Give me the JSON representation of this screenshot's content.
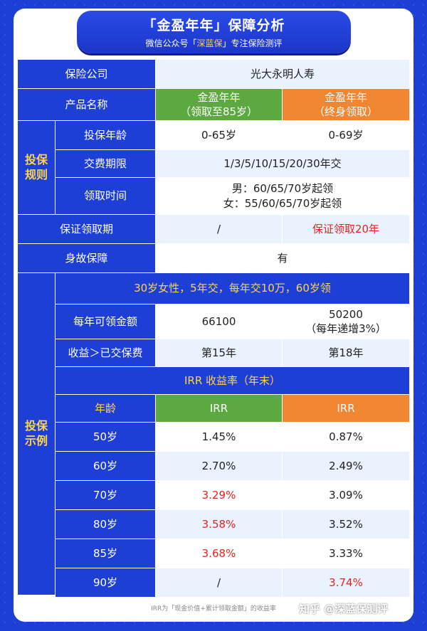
{
  "header": {
    "title": "「金盈年年」保障分析",
    "subtitle_pre": "微信公众号「",
    "subtitle_brand": "深蓝保",
    "subtitle_post": "」专注保险测评"
  },
  "rows": {
    "company_label": "保险公司",
    "company_value": "光大永明人寿",
    "product_label": "产品名称",
    "product_a_line1": "金盈年年",
    "product_a_line2": "（领取至85岁）",
    "product_b_line1": "金盈年年",
    "product_b_line2": "（终身领取）",
    "rules_group": "投保\n规则",
    "age_label": "投保年龄",
    "age_a": "0-65岁",
    "age_b": "0-69岁",
    "pay_label": "交费期限",
    "pay_value": "1/3/5/10/15/20/30年交",
    "claim_label": "领取时间",
    "claim_line1": "男：60/65/70岁起领",
    "claim_line2": "女：55/60/65/70岁起领",
    "guarantee_label": "保证领取期",
    "guarantee_a": "/",
    "guarantee_b": "保证领取20年",
    "death_label": "身故保障",
    "death_value": "有"
  },
  "example": {
    "group": "投保\n示例",
    "scenario": "30岁女性，5年交，每年交10万，60岁领",
    "annual_label": "每年可领金额",
    "annual_a": "66100",
    "annual_b_line1": "50200",
    "annual_b_line2": "（每年递增3%）",
    "breakeven_label": "收益＞已交保费",
    "breakeven_a": "第15年",
    "breakeven_b": "第18年",
    "irr_title": "IRR 收益率（年末）",
    "age_header": "年龄",
    "irr_header_a": "IRR",
    "irr_header_b": "IRR",
    "irr_rows": [
      {
        "age": "50岁",
        "a": "1.45%",
        "b": "0.87%",
        "a_red": false,
        "b_red": false
      },
      {
        "age": "60岁",
        "a": "2.70%",
        "b": "2.49%",
        "a_red": false,
        "b_red": false
      },
      {
        "age": "70岁",
        "a": "3.29%",
        "b": "3.09%",
        "a_red": true,
        "b_red": false
      },
      {
        "age": "80岁",
        "a": "3.58%",
        "b": "3.52%",
        "a_red": true,
        "b_red": false
      },
      {
        "age": "85岁",
        "a": "3.68%",
        "b": "3.33%",
        "a_red": true,
        "b_red": false
      },
      {
        "age": "90岁",
        "a": "/",
        "b": "3.74%",
        "a_red": false,
        "b_red": true
      }
    ]
  },
  "footer": {
    "note": "IRR为「现金价值+累计领取金额」的收益率",
    "watermark": "知乎 @深蓝保测评"
  },
  "colors": {
    "primary_blue": "#1d3fd6",
    "green": "#5ba940",
    "orange": "#f08532",
    "highlight_yellow": "#ffd44d",
    "red": "#e8231f"
  }
}
